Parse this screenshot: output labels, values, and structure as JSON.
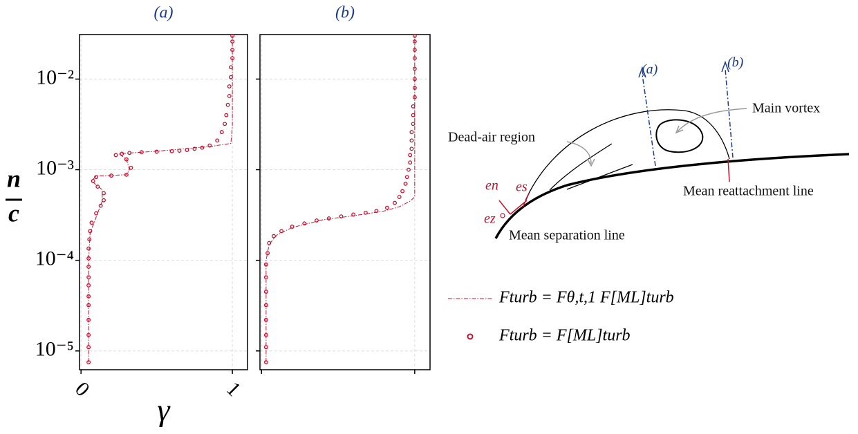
{
  "chart_data": [
    {
      "type": "line",
      "title": "(a)",
      "xlim": [
        -0.01,
        1.1
      ],
      "ylim": [
        6.2e-06,
        0.031
      ],
      "log_y": true,
      "grid": true,
      "tick_labels": true,
      "xticks": [
        0,
        1
      ],
      "yticks": [
        {
          "value": 0.01,
          "label": "10⁻²"
        },
        {
          "value": 0.001,
          "label": "10⁻³"
        },
        {
          "value": 0.0001,
          "label": "10⁻⁴"
        },
        {
          "value": 1e-05,
          "label": "10⁻⁵"
        }
      ],
      "xlabel": "γ",
      "ylabel": {
        "numerator": "n",
        "denominator": "c"
      },
      "series": [
        {
          "name": "Fturb = Fθ,t,1 F[ML]turb",
          "color": "#c8102e",
          "style": "dash-dot",
          "x": [
            0.05,
            0.05,
            0.06,
            0.1,
            0.14,
            0.14,
            0.07,
            0.1,
            0.3,
            0.32,
            0.3,
            0.25,
            0.5,
            0.85,
            0.99,
            1,
            1
          ],
          "y": [
            7.5e-06,
            0.0001,
            0.0002,
            0.0003,
            0.00045,
            0.0006,
            0.00075,
            0.00085,
            0.00088,
            0.001,
            0.0013,
            0.0015,
            0.0016,
            0.0018,
            0.00195,
            0.003,
            0.03
          ]
        },
        {
          "name": "Fturb = F[ML]turb",
          "color": "#c8102e",
          "style": "circle",
          "x": [
            0.05,
            0.05,
            0.05,
            0.05,
            0.05,
            0.05,
            0.05,
            0.05,
            0.05,
            0.05,
            0.05,
            0.055,
            0.06,
            0.07,
            0.1,
            0.13,
            0.15,
            0.15,
            0.11,
            0.08,
            0.1,
            0.2,
            0.3,
            0.33,
            0.3,
            0.23,
            0.27,
            0.32,
            0.4,
            0.5,
            0.6,
            0.65,
            0.7,
            0.75,
            0.8,
            0.85,
            0.9,
            0.93,
            0.95,
            0.96,
            0.97,
            0.98,
            0.98,
            0.99,
            0.99,
            1,
            1,
            1,
            1
          ],
          "y": [
            7.5e-06,
            1.1e-05,
            1.5e-05,
            2.2e-05,
            3.2e-05,
            4e-05,
            5.3e-05,
            6.5e-05,
            8.5e-05,
            0.000105,
            0.000135,
            0.00017,
            0.00021,
            0.00026,
            0.00033,
            0.0004,
            0.00046,
            0.00055,
            0.00065,
            0.00075,
            0.00083,
            0.00086,
            0.00088,
            0.00105,
            0.0013,
            0.00145,
            0.0015,
            0.00153,
            0.00156,
            0.00158,
            0.0016,
            0.00162,
            0.00165,
            0.0017,
            0.00175,
            0.00185,
            0.0021,
            0.0026,
            0.0032,
            0.004,
            0.0052,
            0.0065,
            0.0083,
            0.0105,
            0.0135,
            0.017,
            0.021,
            0.026,
            0.03
          ]
        }
      ]
    },
    {
      "type": "line",
      "title": "(b)",
      "xlim": [
        -0.01,
        1.1
      ],
      "ylim": [
        6.2e-06,
        0.031
      ],
      "log_y": true,
      "grid": true,
      "tick_labels": false,
      "xticks": [
        0,
        1
      ],
      "yticks": [
        0.01,
        0.001,
        0.0001,
        1e-05
      ],
      "series": [
        {
          "color": "#c8102e",
          "style": "dash-dot",
          "x": [
            0.03,
            0.03,
            0.05,
            0.1,
            0.2,
            0.4,
            0.6,
            0.8,
            0.9,
            0.97,
            1,
            1
          ],
          "y": [
            7.5e-06,
            0.0001,
            0.00015,
            0.00019,
            0.00023,
            0.00028,
            0.00031,
            0.00035,
            0.00039,
            0.00045,
            0.0005,
            0.03
          ]
        },
        {
          "color": "#c8102e",
          "style": "circle",
          "x": [
            0.03,
            0.03,
            0.03,
            0.03,
            0.03,
            0.03,
            0.03,
            0.03,
            0.04,
            0.05,
            0.08,
            0.13,
            0.2,
            0.28,
            0.36,
            0.44,
            0.52,
            0.6,
            0.68,
            0.75,
            0.82,
            0.87,
            0.9,
            0.92,
            0.94,
            0.95,
            0.96,
            0.97,
            0.97,
            0.98,
            0.98,
            0.98,
            0.99,
            0.99,
            0.99,
            1,
            1,
            1,
            1,
            1,
            1,
            1,
            1
          ],
          "y": [
            7.5e-06,
            1.1e-05,
            1.5e-05,
            2.2e-05,
            3.2e-05,
            4.5e-05,
            6.5e-05,
            9e-05,
            0.00012,
            0.000155,
            0.000185,
            0.00021,
            0.000235,
            0.000255,
            0.000275,
            0.00029,
            0.000305,
            0.00032,
            0.000335,
            0.00035,
            0.00038,
            0.00043,
            0.0005,
            0.00058,
            0.0007,
            0.00083,
            0.001,
            0.0012,
            0.00145,
            0.0017,
            0.0021,
            0.0026,
            0.0032,
            0.004,
            0.005,
            0.0063,
            0.008,
            0.01,
            0.013,
            0.017,
            0.021,
            0.026,
            0.03
          ]
        }
      ]
    }
  ],
  "diagram": {
    "labels": {
      "line_a": "(a)",
      "line_b": "(b)",
      "main_vortex": "Main vortex",
      "dead_air": "Dead-air region",
      "reattachment": "Mean reattachment line",
      "separation": "Mean separation line",
      "e_n": "en",
      "e_s": "es",
      "e_z": "ez"
    }
  }
}
